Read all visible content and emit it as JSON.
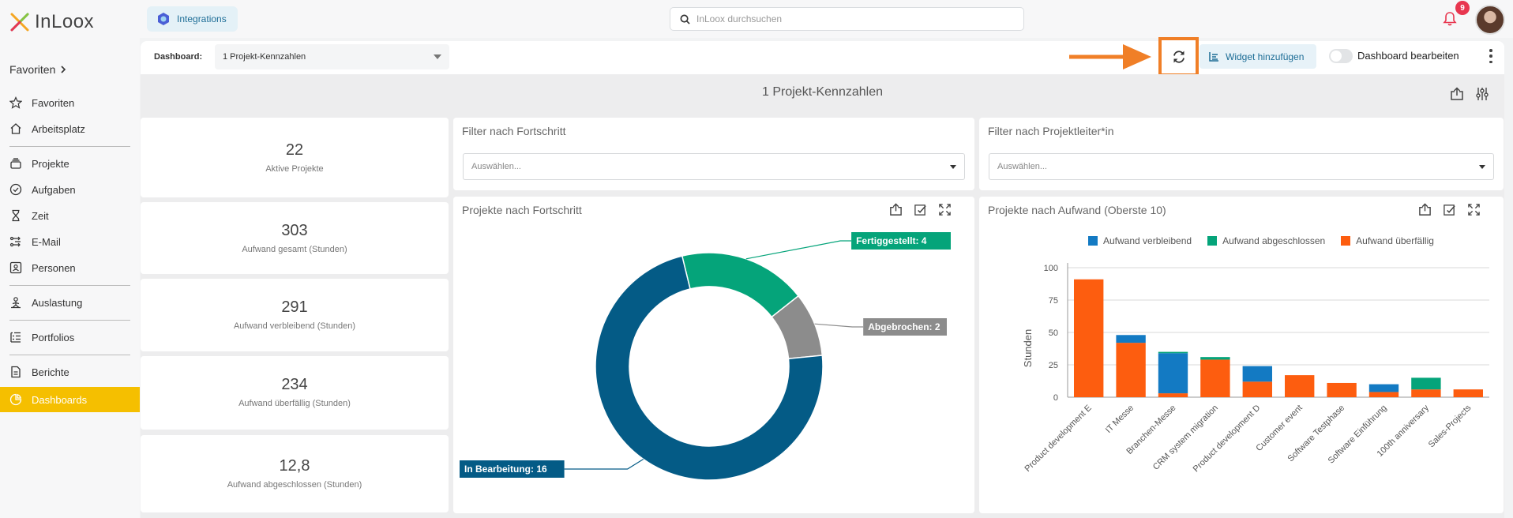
{
  "app": {
    "logo_text": "InLoox"
  },
  "topbar": {
    "integrations_label": "Integrations",
    "search_placeholder": "InLoox durchsuchen",
    "notification_count": "9"
  },
  "sidebar": {
    "favorites_header": "Favoriten",
    "items": [
      {
        "label": "Favoriten",
        "icon": "star-icon"
      },
      {
        "label": "Arbeitsplatz",
        "icon": "home-icon"
      },
      {
        "label": "Projekte",
        "icon": "projects-icon"
      },
      {
        "label": "Aufgaben",
        "icon": "check-circle-icon"
      },
      {
        "label": "Zeit",
        "icon": "hourglass-icon"
      },
      {
        "label": "E-Mail",
        "icon": "email-icon"
      },
      {
        "label": "Personen",
        "icon": "person-card-icon"
      },
      {
        "label": "Auslastung",
        "icon": "capacity-icon"
      },
      {
        "label": "Portfolios",
        "icon": "portfolio-icon"
      },
      {
        "label": "Berichte",
        "icon": "report-icon"
      },
      {
        "label": "Dashboards",
        "icon": "dashboard-icon",
        "active": true
      }
    ]
  },
  "toolbar": {
    "dashboard_label": "Dashboard:",
    "dashboard_selected": "1 Projekt-Kennzahlen",
    "add_widget_label": "Widget hinzufügen",
    "edit_dashboard_label": "Dashboard bearbeiten",
    "annotation_color": "#f07f27"
  },
  "dashboard": {
    "title": "1 Projekt-Kennzahlen",
    "kpis": [
      {
        "value": "22",
        "label": "Aktive Projekte"
      },
      {
        "value": "303",
        "label": "Aufwand gesamt (Stunden)"
      },
      {
        "value": "291",
        "label": "Aufwand verbleibend (Stunden)"
      },
      {
        "value": "234",
        "label": "Aufwand überfällig (Stunden)"
      },
      {
        "value": "12,8",
        "label": "Aufwand abgeschlossen (Stunden)"
      }
    ],
    "filter_progress": {
      "title": "Filter nach Fortschritt",
      "placeholder": "Auswählen..."
    },
    "filter_lead": {
      "title": "Filter nach Projektleiter*in",
      "placeholder": "Auswählen..."
    },
    "donut_title": "Projekte nach Fortschritt",
    "bar_title": "Projekte nach Aufwand (Oberste 10)"
  },
  "chart_data": [
    {
      "type": "pie",
      "title": "Projekte nach Fortschritt",
      "categories": [
        "In Bearbeitung",
        "Fertiggestellt",
        "Abgebrochen"
      ],
      "values": [
        16,
        4,
        2
      ],
      "data_labels": [
        "In Bearbeitung: 16",
        "Fertiggestellt: 4",
        "Abgebrochen: 2"
      ],
      "colors": [
        "#045b86",
        "#05a47a",
        "#8c8c8c"
      ]
    },
    {
      "type": "bar",
      "stacked": true,
      "title": "Projekte nach Aufwand (Oberste 10)",
      "ylabel": "Stunden",
      "ylim": [
        0,
        100
      ],
      "yticks": [
        0,
        25,
        50,
        75,
        100
      ],
      "legend_position": "top",
      "categories": [
        "Product development E",
        "IT Messe",
        "Branchen-Messe",
        "CRM system migration",
        "Product development D",
        "Customer event",
        "Software Testphase",
        "Software Einführung",
        "100th anniversary",
        "Sales-Projects"
      ],
      "series": [
        {
          "name": "Aufwand überfällig",
          "color": "#fd5d0f",
          "values": [
            91,
            42,
            3,
            29,
            12,
            17,
            11,
            4,
            6,
            6
          ]
        },
        {
          "name": "Aufwand verbleibend",
          "color": "#137ac3",
          "values": [
            0,
            6,
            31,
            0,
            12,
            0,
            0,
            6,
            0,
            0
          ]
        },
        {
          "name": "Aufwand abgeschlossen",
          "color": "#05a47a",
          "values": [
            0,
            0,
            1,
            2,
            0,
            0,
            0,
            0,
            9,
            0
          ]
        }
      ],
      "legend_order": [
        "Aufwand verbleibend",
        "Aufwand abgeschlossen",
        "Aufwand überfällig"
      ]
    }
  ]
}
